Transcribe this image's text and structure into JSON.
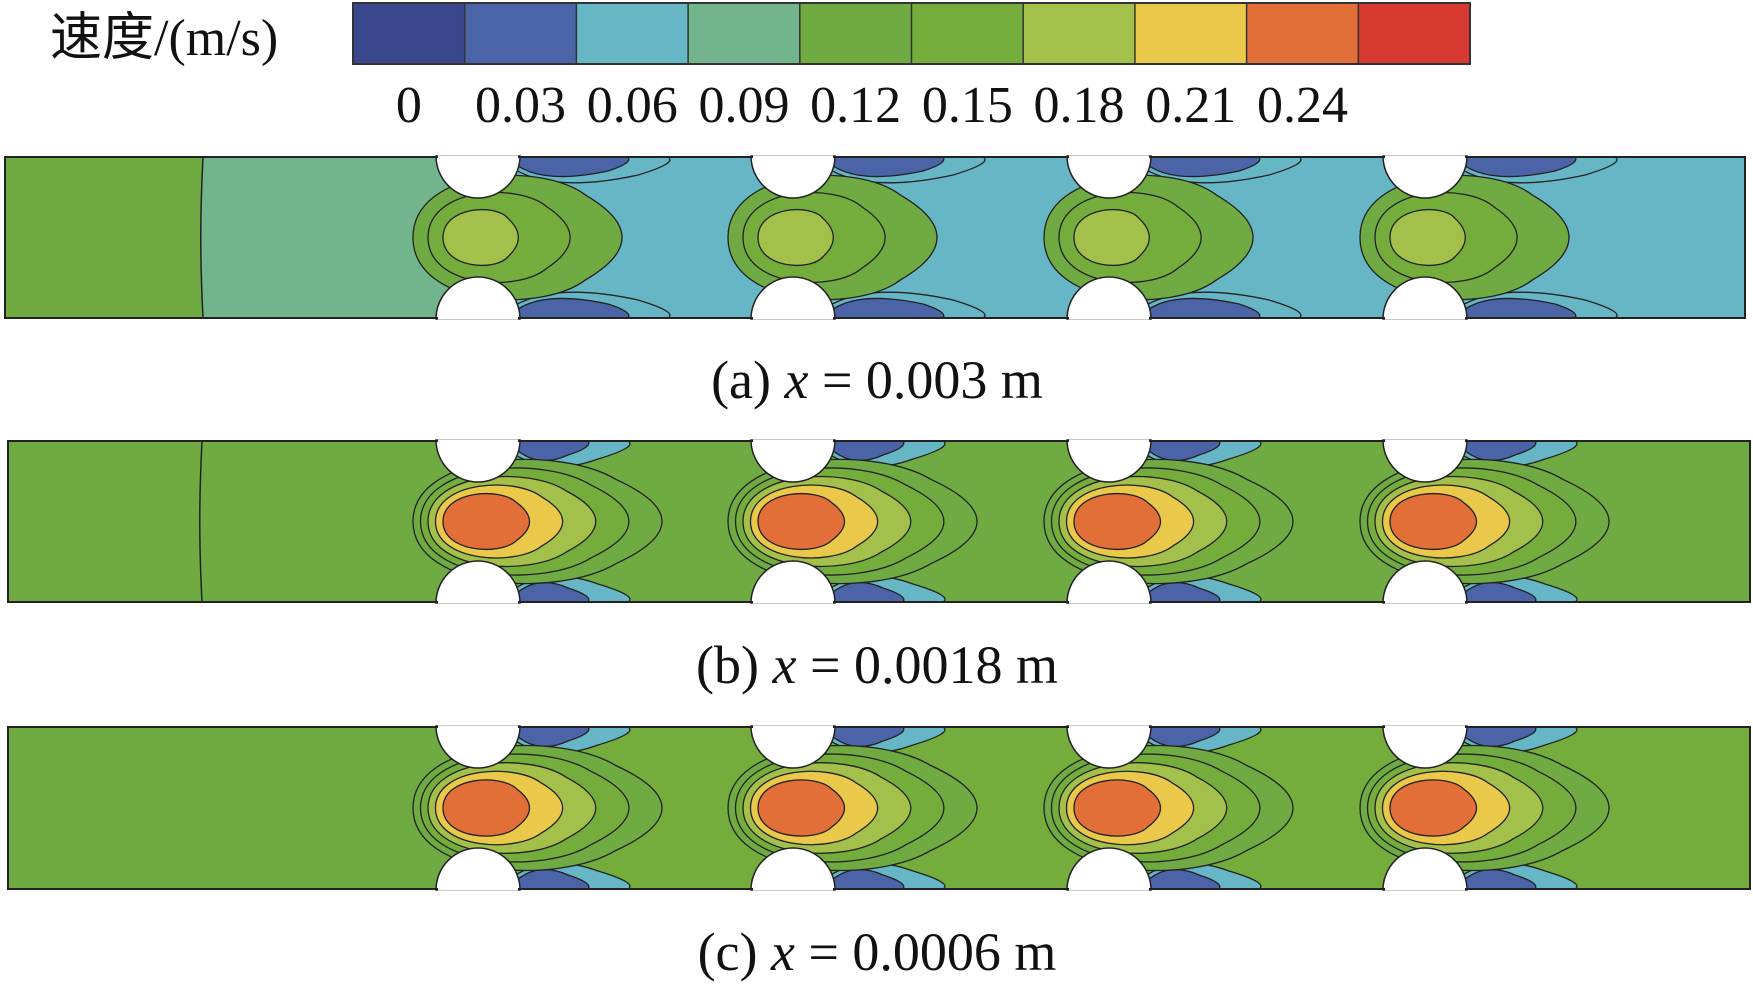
{
  "colorbar": {
    "label": "速度/(m/s)",
    "ticks": [
      "0",
      "0.03",
      "0.06",
      "0.09",
      "0.12",
      "0.15",
      "0.18",
      "0.21",
      "0.24"
    ],
    "colors": [
      "#3b478c",
      "#4a64a7",
      "#67b6c6",
      "#72b48c",
      "#6faa42",
      "#74ad3b",
      "#a3c14a",
      "#e9c84a",
      "#e26e38",
      "#d6392f"
    ]
  },
  "chart_data": {
    "type": "heatmap",
    "title": "",
    "colorbar_label": "速度/(m/s)",
    "value_range": [
      0,
      0.27
    ],
    "level_step": 0.03,
    "levels": [
      0,
      0.03,
      0.06,
      0.09,
      0.12,
      0.15,
      0.18,
      0.21,
      0.24
    ],
    "panels": [
      {
        "id": "a",
        "caption_prefix": "(a) ",
        "caption_var": "x",
        "caption_value": " = 0.003 m",
        "x_m": 0.003,
        "obstacle_pairs": 4,
        "inlet_velocity": 0.12,
        "peak_velocity": 0.18,
        "wake_min_velocity": 0.0
      },
      {
        "id": "b",
        "caption_prefix": "(b) ",
        "caption_var": "x",
        "caption_value": " = 0.0018 m",
        "x_m": 0.0018,
        "obstacle_pairs": 4,
        "inlet_velocity": 0.12,
        "peak_velocity": 0.24,
        "wake_min_velocity": 0.0
      },
      {
        "id": "c",
        "caption_prefix": "(c) ",
        "caption_var": "x",
        "caption_value": " = 0.0006 m",
        "x_m": 0.0006,
        "obstacle_pairs": 4,
        "inlet_velocity": 0.12,
        "peak_velocity": 0.24,
        "wake_min_velocity": 0.0
      }
    ]
  }
}
